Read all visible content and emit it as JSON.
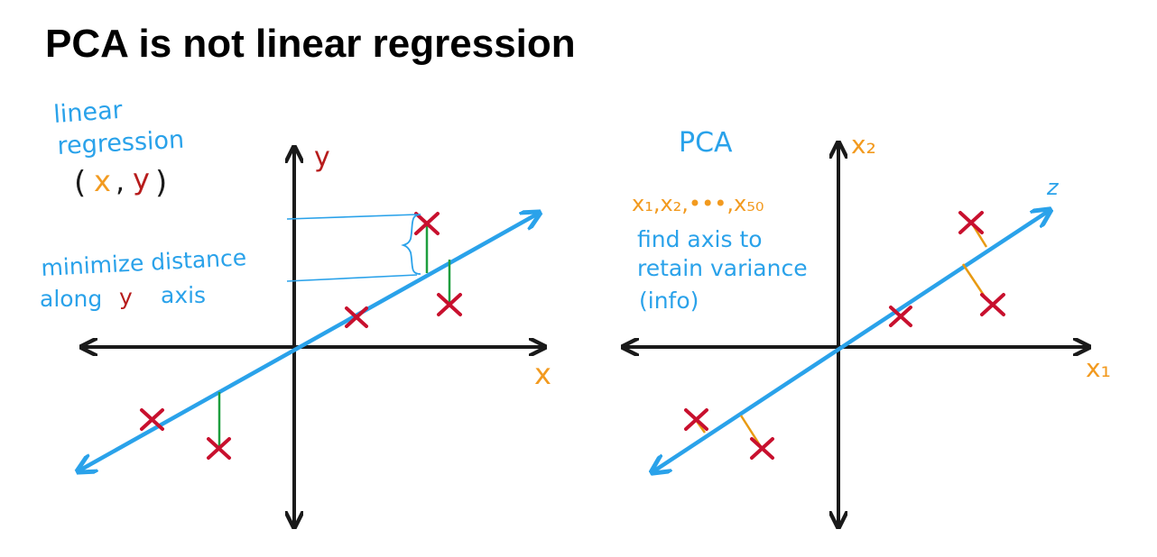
{
  "title": "PCA is not linear regression",
  "colors": {
    "axis": "#1a1a1a",
    "line": "#2aa2ea",
    "point": "#c8102e",
    "residual": "#1e9e3e",
    "projection": "#e89a12",
    "annotation": "#2aa2ea",
    "label_orange": "#f29a1f",
    "label_red": "#b71c1c"
  },
  "left": {
    "heading_line1": "linear",
    "heading_line2": "regression",
    "pair_open": "(",
    "pair_x": "x",
    "pair_comma": ",",
    "pair_y": "y",
    "pair_close": ")",
    "y_axis_label": "y",
    "x_axis_label": "x",
    "note_line1": "minimize distance",
    "note_line2_prefix": "along",
    "note_line2_var": "y",
    "note_line2_suffix": "axis",
    "point_icon": "x-mark-icon"
  },
  "right": {
    "heading": "PCA",
    "y_axis_label": "x₂",
    "x_axis_label": "x₁",
    "line_label": "z",
    "features": "x₁,x₂,•••,x₅₀",
    "note_line1": "find axis to",
    "note_line2": "retain variance",
    "note_line3": "(info)",
    "point_icon": "x-mark-icon"
  }
}
